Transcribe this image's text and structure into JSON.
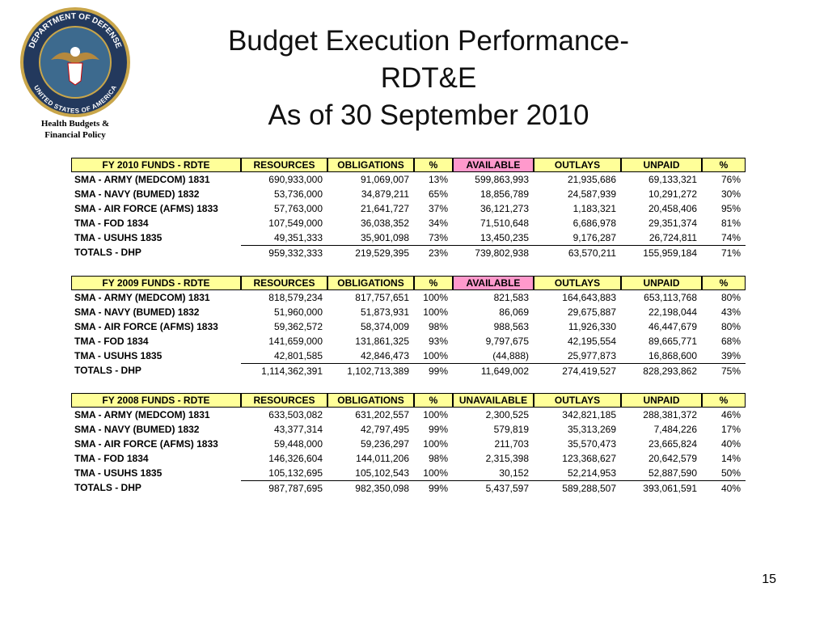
{
  "header": {
    "title_lines": [
      "Budget Execution Performance-",
      "RDT&E",
      "As of 30 September 2010"
    ],
    "logo_top": "DEPARTMENT OF DEFENSE",
    "logo_bottom": "UNITED STATES OF AMERICA",
    "caption_lines": [
      "Health Budgets  &",
      "Financial Policy"
    ]
  },
  "tables": [
    {
      "headers": [
        "FY 2010 FUNDS - RDTE",
        "RESOURCES",
        "OBLIGATIONS",
        "%",
        "AVAILABLE",
        "OUTLAYS",
        "UNPAID",
        "%"
      ],
      "rows": [
        [
          "SMA - ARMY (MEDCOM) 1831",
          "690,933,000",
          "91,069,007",
          "13%",
          "599,863,993",
          "21,935,686",
          "69,133,321",
          "76%"
        ],
        [
          "SMA - NAVY (BUMED) 1832",
          "53,736,000",
          "34,879,211",
          "65%",
          "18,856,789",
          "24,587,939",
          "10,291,272",
          "30%"
        ],
        [
          "SMA - AIR FORCE (AFMS) 1833",
          "57,763,000",
          "21,641,727",
          "37%",
          "36,121,273",
          "1,183,321",
          "20,458,406",
          "95%"
        ],
        [
          "TMA - FOD 1834",
          "107,549,000",
          "36,038,352",
          "34%",
          "71,510,648",
          "6,686,978",
          "29,351,374",
          "81%"
        ],
        [
          "TMA - USUHS 1835",
          "49,351,333",
          "35,901,098",
          "73%",
          "13,450,235",
          "9,176,287",
          "26,724,811",
          "74%"
        ],
        [
          "TOTALS - DHP",
          "959,332,333",
          "219,529,395",
          "23%",
          "739,802,938",
          "63,570,211",
          "155,959,184",
          "71%"
        ]
      ]
    },
    {
      "headers": [
        "FY 2009 FUNDS - RDTE",
        "RESOURCES",
        "OBLIGATIONS",
        "%",
        "AVAILABLE",
        "OUTLAYS",
        "UNPAID",
        "%"
      ],
      "rows": [
        [
          "SMA - ARMY (MEDCOM) 1831",
          "818,579,234",
          "817,757,651",
          "100%",
          "821,583",
          "164,643,883",
          "653,113,768",
          "80%"
        ],
        [
          "SMA - NAVY (BUMED) 1832",
          "51,960,000",
          "51,873,931",
          "100%",
          "86,069",
          "29,675,887",
          "22,198,044",
          "43%"
        ],
        [
          "SMA - AIR FORCE (AFMS) 1833",
          "59,362,572",
          "58,374,009",
          "98%",
          "988,563",
          "11,926,330",
          "46,447,679",
          "80%"
        ],
        [
          "TMA - FOD 1834",
          "141,659,000",
          "131,861,325",
          "93%",
          "9,797,675",
          "42,195,554",
          "89,665,771",
          "68%"
        ],
        [
          "TMA - USUHS 1835",
          "42,801,585",
          "42,846,473",
          "100%",
          "(44,888)",
          "25,977,873",
          "16,868,600",
          "39%"
        ],
        [
          "TOTALS - DHP",
          "1,114,362,391",
          "1,102,713,389",
          "99%",
          "11,649,002",
          "274,419,527",
          "828,293,862",
          "75%"
        ]
      ]
    },
    {
      "headers": [
        "FY 2008 FUNDS - RDTE",
        "RESOURCES",
        "OBLIGATIONS",
        "%",
        "UNAVAILABLE",
        "OUTLAYS",
        "UNPAID",
        "%"
      ],
      "rows": [
        [
          "SMA - ARMY (MEDCOM) 1831",
          "633,503,082",
          "631,202,557",
          "100%",
          "2,300,525",
          "342,821,185",
          "288,381,372",
          "46%"
        ],
        [
          "SMA - NAVY (BUMED) 1832",
          "43,377,314",
          "42,797,495",
          "99%",
          "579,819",
          "35,313,269",
          "7,484,226",
          "17%"
        ],
        [
          "SMA - AIR FORCE (AFMS) 1833",
          "59,448,000",
          "59,236,297",
          "100%",
          "211,703",
          "35,570,473",
          "23,665,824",
          "40%"
        ],
        [
          "TMA - FOD 1834",
          "146,326,604",
          "144,011,206",
          "98%",
          "2,315,398",
          "123,368,627",
          "20,642,579",
          "14%"
        ],
        [
          "TMA - USUHS 1835",
          "105,132,695",
          "105,102,543",
          "100%",
          "30,152",
          "52,214,953",
          "52,887,590",
          "50%"
        ],
        [
          "TOTALS - DHP",
          "987,787,695",
          "982,350,098",
          "99%",
          "5,437,597",
          "589,288,507",
          "393,061,591",
          "40%"
        ]
      ]
    }
  ],
  "page_number": "15"
}
